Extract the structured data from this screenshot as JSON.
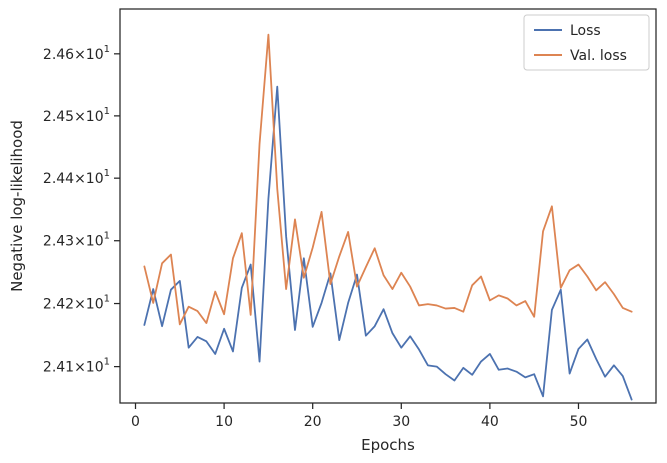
{
  "chart_data": {
    "type": "line",
    "xlabel": "Epochs",
    "ylabel": "Negative log-likelihood",
    "xlim": [
      -1.75,
      58.75
    ],
    "ylim": [
      24.0425,
      24.6725
    ],
    "x_ticks": [
      0,
      10,
      20,
      30,
      40,
      50
    ],
    "y_ticks": [
      {
        "value": 24.1,
        "mantissa": "2.41"
      },
      {
        "value": 24.2,
        "mantissa": "2.42"
      },
      {
        "value": 24.3,
        "mantissa": "2.43"
      },
      {
        "value": 24.4,
        "mantissa": "2.44"
      },
      {
        "value": 24.5,
        "mantissa": "2.45"
      },
      {
        "value": 24.6,
        "mantissa": "2.46"
      }
    ],
    "y_tick_suffix_base": "10",
    "y_tick_suffix_exp": "1",
    "y_scale": "log",
    "legend_position": "top-right",
    "x": [
      1,
      2,
      3,
      4,
      5,
      6,
      7,
      8,
      9,
      10,
      11,
      12,
      13,
      14,
      15,
      16,
      17,
      18,
      19,
      20,
      21,
      22,
      23,
      24,
      25,
      26,
      27,
      28,
      29,
      30,
      31,
      32,
      33,
      34,
      35,
      36,
      37,
      38,
      39,
      40,
      41,
      42,
      43,
      44,
      45,
      46,
      47,
      48,
      49,
      50,
      51,
      52,
      53,
      54,
      55,
      56
    ],
    "series": [
      {
        "name": "Loss",
        "color": "#4c72b0",
        "values": [
          24.166,
          24.223,
          24.164,
          24.222,
          24.236,
          24.13,
          24.147,
          24.14,
          24.12,
          24.16,
          24.124,
          24.225,
          24.262,
          24.108,
          24.367,
          24.547,
          24.307,
          24.158,
          24.272,
          24.163,
          24.201,
          24.248,
          24.142,
          24.201,
          24.246,
          24.149,
          24.164,
          24.191,
          24.153,
          24.13,
          24.148,
          24.127,
          24.102,
          24.1,
          24.088,
          24.078,
          24.098,
          24.087,
          24.108,
          24.12,
          24.095,
          24.097,
          24.092,
          24.083,
          24.088,
          24.053,
          24.19,
          24.222,
          24.089,
          24.128,
          24.143,
          24.112,
          24.084,
          24.102,
          24.085,
          24.048
        ]
      },
      {
        "name": "Val. loss",
        "color": "#dd8452",
        "values": [
          24.259,
          24.201,
          24.264,
          24.278,
          24.167,
          24.195,
          24.188,
          24.169,
          24.219,
          24.183,
          24.272,
          24.312,
          24.182,
          24.455,
          24.631,
          24.383,
          24.223,
          24.334,
          24.241,
          24.289,
          24.346,
          24.231,
          24.275,
          24.314,
          24.227,
          24.258,
          24.288,
          24.245,
          24.223,
          24.249,
          24.227,
          24.197,
          24.199,
          24.197,
          24.192,
          24.193,
          24.187,
          24.229,
          24.243,
          24.205,
          24.213,
          24.208,
          24.197,
          24.204,
          24.179,
          24.315,
          24.355,
          24.225,
          24.253,
          24.262,
          24.243,
          24.221,
          24.234,
          24.215,
          24.193,
          24.187
        ]
      }
    ]
  }
}
